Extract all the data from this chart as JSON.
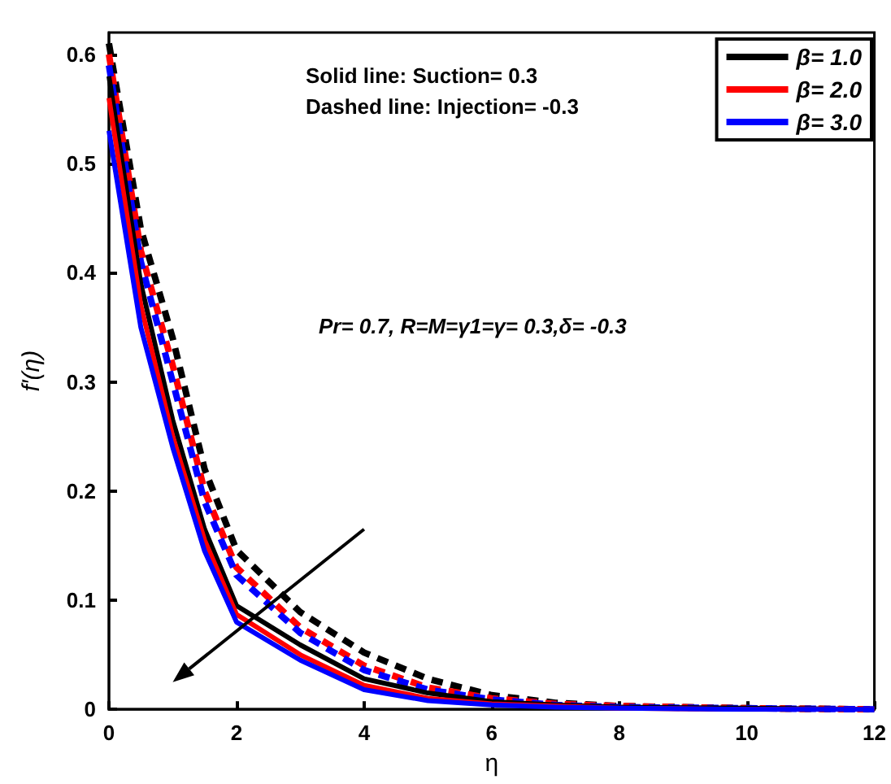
{
  "chart_data": {
    "type": "line",
    "xlabel": "η",
    "ylabel": "f′(η)",
    "x": [
      0,
      0.5,
      1,
      1.5,
      2,
      3,
      4,
      5,
      6,
      7,
      8,
      10,
      12
    ],
    "series": [
      {
        "name": "β= 1.0",
        "color": "#000000",
        "line_style": "solid",
        "values": [
          0.58,
          0.39,
          0.265,
          0.165,
          0.095,
          0.059,
          0.028,
          0.015,
          0.007,
          0.004,
          0.002,
          0.001,
          0
        ]
      },
      {
        "name": "β= 2.0",
        "color": "#ff0000",
        "line_style": "solid",
        "values": [
          0.56,
          0.37,
          0.25,
          0.155,
          0.087,
          0.05,
          0.022,
          0.01,
          0.005,
          0.003,
          0.001,
          0,
          0
        ]
      },
      {
        "name": "β= 3.0",
        "color": "#0000ff",
        "line_style": "solid",
        "values": [
          0.53,
          0.35,
          0.24,
          0.145,
          0.08,
          0.045,
          0.018,
          0.008,
          0.004,
          0.002,
          0.001,
          0,
          0
        ]
      },
      {
        "color": "#000000",
        "line_style": "dashed",
        "values": [
          0.61,
          0.44,
          0.34,
          0.22,
          0.146,
          0.089,
          0.052,
          0.028,
          0.013,
          0.006,
          0.003,
          0.001,
          0
        ]
      },
      {
        "color": "#ff0000",
        "line_style": "dashed",
        "values": [
          0.6,
          0.42,
          0.315,
          0.2,
          0.13,
          0.075,
          0.04,
          0.02,
          0.01,
          0.005,
          0.003,
          0.001,
          0
        ]
      },
      {
        "color": "#0000ff",
        "line_style": "dashed",
        "values": [
          0.59,
          0.41,
          0.3,
          0.19,
          0.123,
          0.07,
          0.036,
          0.018,
          0.009,
          0.004,
          0.002,
          0.001,
          0
        ]
      }
    ],
    "xlim": [
      0,
      12
    ],
    "xticks": [
      0,
      2,
      4,
      6,
      8,
      10,
      12
    ],
    "ylim": [
      0,
      0.62
    ],
    "yticks": [
      0,
      0.1,
      0.2,
      0.3,
      0.4,
      0.5,
      0.6
    ],
    "legend": "top right",
    "marker": "none",
    "grid": false,
    "annotations": [
      "Solid line: Suction= 0.3",
      "Dashed line: Injection= -0.3",
      "Pr= 0.7, R=M=γ1=γ= 0.3,δ= -0.3"
    ]
  }
}
